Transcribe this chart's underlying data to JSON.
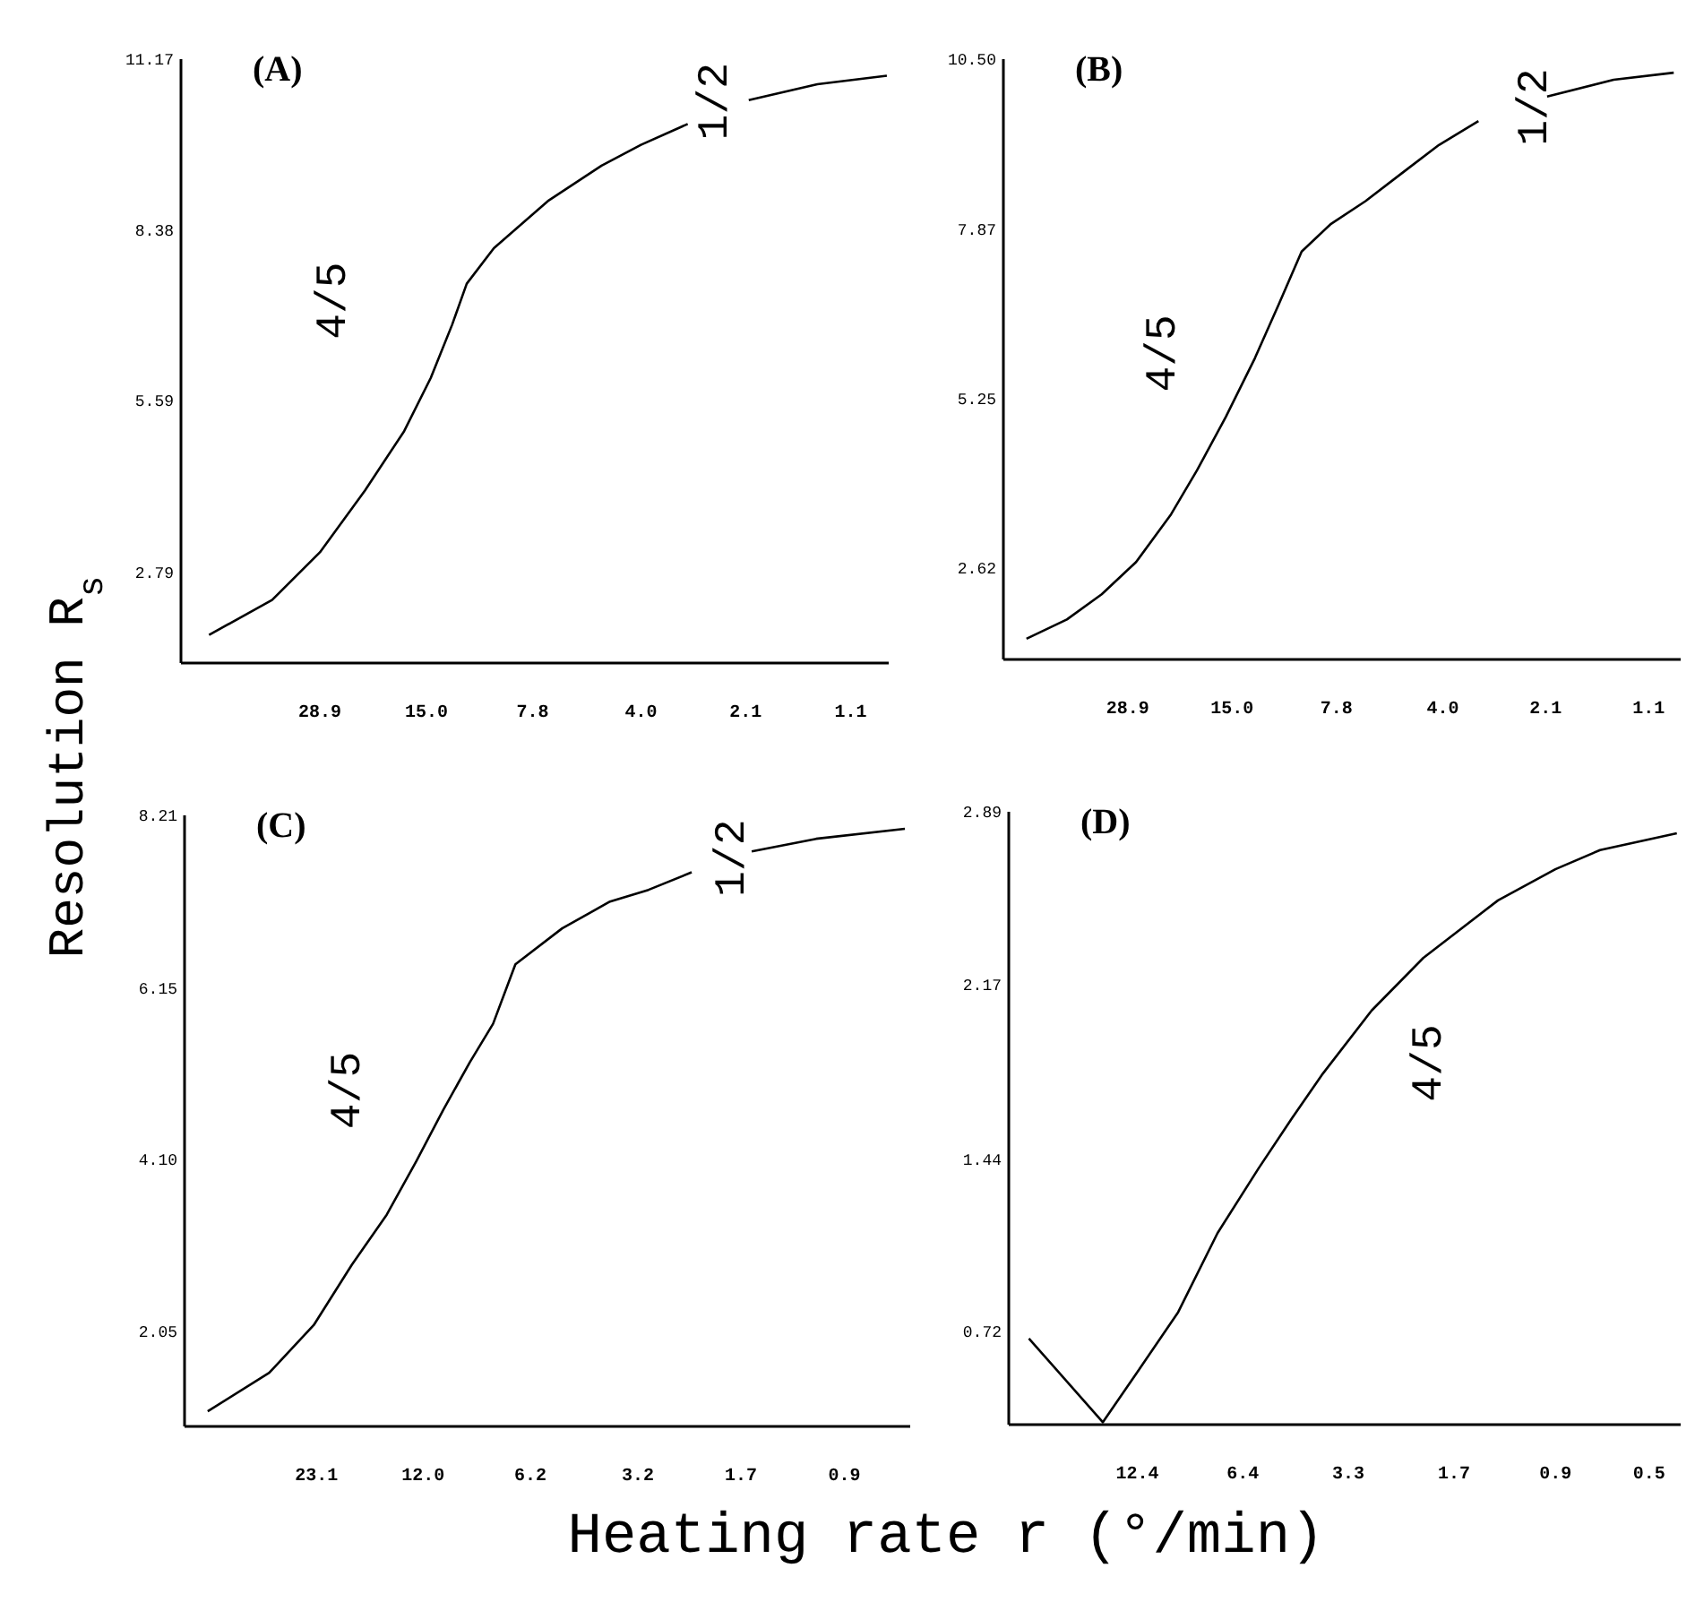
{
  "chart_data": [
    {
      "type": "line",
      "title": "(A)",
      "ylabel": "Resolution R$_{s}$",
      "log": "x",
      "color": "#000000",
      "x": [
        57.2,
        38.8,
        28.9,
        21.9,
        17.2,
        14.6,
        12.8,
        11.7,
        9.9,
        7.1,
        5.1,
        4.0,
        3.0,
        2.5,
        2.06,
        1.35,
        0.88
      ],
      "values": [
        1.76,
        2.33,
        3.11,
        4.12,
        5.09,
        5.96,
        6.83,
        7.5,
        8.08,
        8.85,
        9.43,
        9.77,
        10.11,
        null,
        10.5,
        10.76,
        10.9
      ],
      "xlim": [
        68,
        0.87
      ],
      "xticks": [
        28.9,
        {
          "value": 15,
          "label": "15.0"
        },
        7.8,
        {
          "value": 4,
          "label": "4.0"
        },
        2.1,
        1.1
      ],
      "ylim": [
        1.3,
        11.17
      ],
      "yticks": [
        2.79,
        5.59,
        8.38,
        11.17
      ],
      "annotations": [
        "4/5",
        "1/2"
      ]
    },
    {
      "type": "line",
      "title": "(B)",
      "log": "x",
      "color": "#000000",
      "x": [
        54.5,
        42.3,
        34.0,
        27.4,
        22.0,
        18.7,
        15.6,
        13.0,
        11.2,
        9.7,
        8.1,
        6.5,
        5.1,
        4.1,
        3.2,
        2.6,
        2.08,
        1.37,
        0.94
      ],
      "values": [
        1.52,
        1.82,
        2.21,
        2.71,
        3.45,
        4.13,
        4.96,
        5.87,
        6.7,
        7.52,
        7.94,
        8.3,
        8.76,
        9.17,
        9.54,
        null,
        9.92,
        10.18,
        10.29
      ],
      "xlim": [
        63,
        0.9
      ],
      "xticks": [
        28.9,
        {
          "value": 15,
          "label": "15.0"
        },
        7.8,
        {
          "value": 4,
          "label": "4.0"
        },
        2.1,
        1.1
      ],
      "ylim": [
        1.2,
        10.5
      ],
      "yticks": [
        2.62,
        5.25,
        7.87,
        {
          "value": 10.5,
          "label": "10.50"
        }
      ],
      "annotations": [
        "4/5",
        "1/2"
      ]
    },
    {
      "type": "line",
      "title": "(C)",
      "xlabel": "Heating rate r (°/min)",
      "log": "x",
      "color": "#000000",
      "x": [
        45.1,
        30.9,
        23.5,
        18.6,
        15.0,
        12.5,
        10.6,
        9.0,
        7.8,
        6.8,
        5.1,
        3.8,
        3.0,
        2.3,
        1.9,
        1.59,
        1.07,
        0.62
      ],
      "values": [
        1.09,
        1.55,
        2.12,
        2.84,
        3.44,
        4.08,
        4.69,
        5.26,
        5.72,
        6.43,
        6.86,
        7.18,
        7.32,
        7.53,
        null,
        7.78,
        7.93,
        8.05
      ],
      "xlim": [
        52,
        0.6
      ],
      "xticks": [
        23.1,
        {
          "value": 12,
          "label": "12.0"
        },
        6.2,
        3.2,
        1.7,
        0.9
      ],
      "ylim": [
        0.91,
        8.21
      ],
      "yticks": [
        2.05,
        {
          "value": 4.1,
          "label": "4.10"
        },
        6.15,
        8.21
      ],
      "annotations": [
        "4/5",
        "1/2"
      ]
    },
    {
      "type": "line",
      "title": "(D)",
      "log": "x",
      "color": "#000000",
      "x": [
        24.5,
        15.4,
        12.4,
        9.6,
        7.5,
        5.8,
        4.7,
        3.9,
        2.85,
        2.06,
        1.29,
        0.9,
        0.68,
        0.42
      ],
      "values": [
        0.69,
        0.34,
        0.55,
        0.8,
        1.13,
        1.4,
        1.61,
        1.79,
        2.06,
        2.28,
        2.52,
        2.65,
        2.73,
        2.8
      ],
      "xlim": [
        27.8,
        0.41
      ],
      "xticks": [
        12.4,
        6.4,
        3.3,
        1.7,
        0.9,
        0.5
      ],
      "ylim": [
        0.33,
        2.89
      ],
      "yticks": [
        0.72,
        1.44,
        2.17,
        2.89
      ],
      "annotations": [
        "4/5"
      ]
    }
  ]
}
